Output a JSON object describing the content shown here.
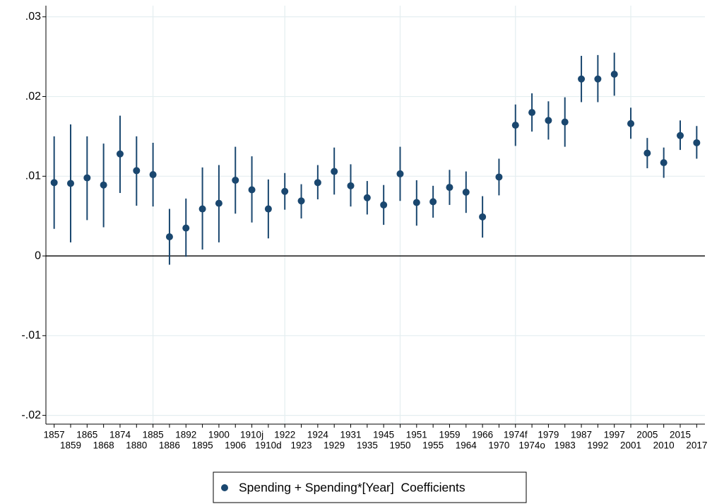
{
  "chart_data": {
    "type": "errorbar",
    "categories": [
      "1857",
      "1859",
      "1865",
      "1868",
      "1874",
      "1880",
      "1885",
      "1886",
      "1892",
      "1895",
      "1900",
      "1906",
      "1910j",
      "1910d",
      "1922",
      "1923",
      "1924",
      "1929",
      "1931",
      "1935",
      "1945",
      "1950",
      "1951",
      "1955",
      "1959",
      "1964",
      "1966",
      "1970",
      "1974f",
      "1974o",
      "1979",
      "1983",
      "1987",
      "1992",
      "1997",
      "2001",
      "2005",
      "2010",
      "2015",
      "2017"
    ],
    "series": [
      {
        "name": "Spending + Spending*[Year]  Coefficients",
        "color": "#1a476f",
        "values": [
          0.0092,
          0.0091,
          0.0098,
          0.0089,
          0.0128,
          0.0107,
          0.0102,
          0.0024,
          0.0035,
          0.0059,
          0.0066,
          0.0095,
          0.0083,
          0.0059,
          0.0081,
          0.0069,
          0.0092,
          0.0106,
          0.0088,
          0.0073,
          0.0064,
          0.0103,
          0.0067,
          0.0068,
          0.0086,
          0.008,
          0.0049,
          0.0099,
          0.0164,
          0.018,
          0.017,
          0.0168,
          0.0222,
          0.0222,
          0.0228,
          0.0166,
          0.0129,
          0.0117,
          0.0151,
          0.0142
        ],
        "lower": [
          0.0034,
          0.0017,
          0.0045,
          0.0036,
          0.0079,
          0.0063,
          0.0062,
          -0.0011,
          -0.0001,
          0.0008,
          0.0017,
          0.0053,
          0.0042,
          0.0022,
          0.0058,
          0.0047,
          0.0071,
          0.0077,
          0.0062,
          0.0052,
          0.0039,
          0.0069,
          0.0038,
          0.0048,
          0.0064,
          0.0054,
          0.0023,
          0.0076,
          0.0138,
          0.0156,
          0.0146,
          0.0137,
          0.0193,
          0.0193,
          0.0201,
          0.0147,
          0.011,
          0.0098,
          0.0133,
          0.0122
        ],
        "upper": [
          0.015,
          0.0165,
          0.015,
          0.0141,
          0.0176,
          0.015,
          0.0142,
          0.0059,
          0.0072,
          0.0111,
          0.0114,
          0.0137,
          0.0125,
          0.0096,
          0.0104,
          0.009,
          0.0114,
          0.0136,
          0.0115,
          0.0094,
          0.0089,
          0.0137,
          0.0095,
          0.0088,
          0.0108,
          0.0106,
          0.0075,
          0.0122,
          0.019,
          0.0204,
          0.0194,
          0.0199,
          0.0251,
          0.0252,
          0.0255,
          0.0186,
          0.0148,
          0.0136,
          0.017,
          0.0163
        ]
      }
    ],
    "ylim": [
      -0.0211,
      0.0314
    ],
    "yticks": [
      {
        "value": -0.02,
        "label": "-.02"
      },
      {
        "value": -0.01,
        "label": "-.01"
      },
      0,
      {
        "value": 0.01,
        "label": ".01"
      },
      {
        "value": 0.02,
        "label": ".02"
      },
      {
        "value": 0.03,
        "label": ".03"
      }
    ],
    "grid": true,
    "xgrid_at": [
      "1885",
      "1922",
      "1950",
      "1974f",
      "2001"
    ],
    "legend": "bottom"
  }
}
